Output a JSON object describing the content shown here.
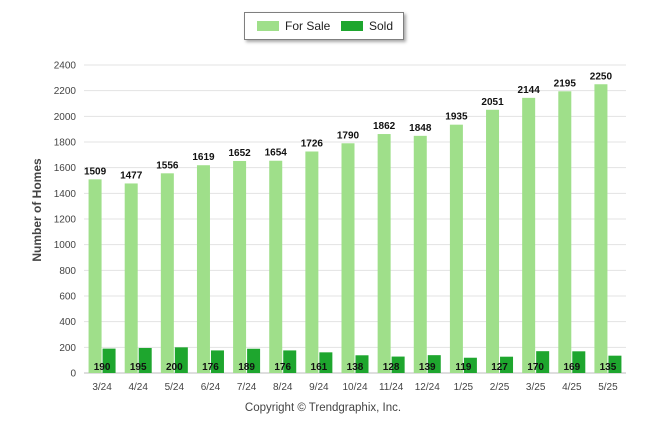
{
  "legend": {
    "items": [
      {
        "label": "For Sale",
        "color": "#9fdf8a"
      },
      {
        "label": "Sold",
        "color": "#1ea62e"
      }
    ]
  },
  "footer": {
    "copyright": "Copyright © Trendgraphix, Inc."
  },
  "chart_data": {
    "type": "bar",
    "title": "",
    "xlabel": "",
    "ylabel": "Number of Homes",
    "ylim": [
      0,
      2400
    ],
    "yticks": [
      0,
      200,
      400,
      600,
      800,
      1000,
      1200,
      1400,
      1600,
      1800,
      2000,
      2200,
      2400
    ],
    "grid": true,
    "legend_position": "top-center",
    "categories": [
      "3/24",
      "4/24",
      "5/24",
      "6/24",
      "7/24",
      "8/24",
      "9/24",
      "10/24",
      "11/24",
      "12/24",
      "1/25",
      "2/25",
      "3/25",
      "4/25",
      "5/25"
    ],
    "series": [
      {
        "name": "For Sale",
        "color": "#9fdf8a",
        "values": [
          1509,
          1477,
          1556,
          1619,
          1652,
          1654,
          1726,
          1790,
          1862,
          1848,
          1935,
          2051,
          2144,
          2195,
          2250
        ]
      },
      {
        "name": "Sold",
        "color": "#1ea62e",
        "values": [
          190,
          195,
          200,
          176,
          189,
          176,
          161,
          138,
          128,
          139,
          119,
          127,
          170,
          169,
          135
        ]
      }
    ]
  }
}
